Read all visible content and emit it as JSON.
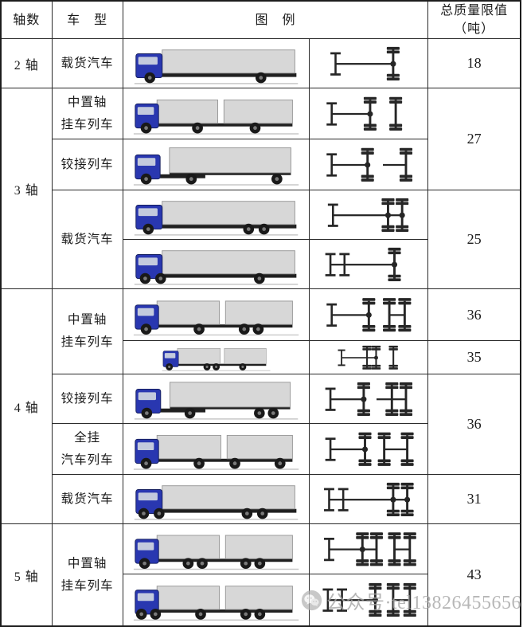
{
  "header": {
    "axles": "轴数",
    "type": "车　型",
    "legend": "图　例",
    "limit": [
      "总质量限值",
      "（吨）"
    ]
  },
  "groups": [
    {
      "label": "2 轴"
    },
    {
      "label": "3 轴"
    },
    {
      "label": "4 轴"
    },
    {
      "label": "5 轴"
    }
  ],
  "rows": [
    {
      "type_label": [
        "载货汽车"
      ],
      "weight": "18",
      "vehicle": {
        "cab": [
          6,
          34
        ],
        "boxes": [
          [
            40,
            172
          ]
        ],
        "bars": [
          [
            38,
            214,
            40,
            5
          ]
        ],
        "wheels": [
          24,
          168
        ]
      },
      "diagram": {
        "lines": [
          [
            28,
            118
          ]
        ],
        "axles": [
          [
            28,
            "s"
          ],
          [
            118,
            "d",
            1
          ]
        ]
      }
    },
    {
      "type_label": [
        "中置轴",
        "挂车列车"
      ],
      "weight": "27",
      "vehicle": {
        "cab": [
          6,
          30
        ],
        "boxes": [
          [
            34,
            78
          ],
          [
            120,
            88
          ]
        ],
        "bars": [
          [
            34,
            208,
            40,
            4
          ]
        ],
        "wheels": [
          20,
          86,
          160
        ]
      },
      "diagram": {
        "lines": [
          [
            22,
            82
          ]
        ],
        "axles": [
          [
            22,
            "s"
          ],
          [
            82,
            "d",
            1
          ],
          [
            122,
            "d"
          ]
        ]
      }
    },
    {
      "type_label": [
        "铰接列车"
      ],
      "vehicle": {
        "cab": [
          6,
          32
        ],
        "boxes": [
          [
            50,
            156,
            6,
            32
          ]
        ],
        "bars": [
          [
            6,
            96,
            40,
            5
          ],
          [
            50,
            206,
            38,
            3
          ]
        ],
        "wheels": [
          20,
          78,
          188
        ]
      },
      "diagram": {
        "lines": [
          [
            22,
            78
          ],
          [
            102,
            138
          ]
        ],
        "axles": [
          [
            22,
            "s"
          ],
          [
            78,
            "d",
            1
          ],
          [
            138,
            "d"
          ]
        ]
      }
    },
    {
      "type_label": [
        "载货汽车"
      ],
      "weight": "25",
      "vehicle": {
        "cab": [
          6,
          34
        ],
        "boxes": [
          [
            40,
            172
          ]
        ],
        "bars": [
          [
            38,
            214,
            40,
            5
          ]
        ],
        "wheels": [
          22,
          152,
          172
        ]
      },
      "diagram": {
        "lines": [
          [
            24,
            132
          ]
        ],
        "axles": [
          [
            24,
            "s"
          ],
          [
            110,
            "d",
            1
          ],
          [
            132,
            "d",
            1
          ]
        ]
      }
    },
    {
      "vehicle": {
        "cab": [
          6,
          34
        ],
        "boxes": [
          [
            40,
            172
          ]
        ],
        "bars": [
          [
            38,
            214,
            40,
            5
          ]
        ],
        "wheels": [
          18,
          38,
          166
        ]
      },
      "diagram": {
        "lines": [
          [
            20,
            120
          ]
        ],
        "axles": [
          [
            20,
            "s"
          ],
          [
            42,
            "s"
          ],
          [
            120,
            "d",
            1
          ]
        ]
      }
    },
    {
      "type_label": [
        "中置轴",
        "挂车列车"
      ],
      "weight": "36",
      "vehicle": {
        "cab": [
          6,
          30
        ],
        "boxes": [
          [
            34,
            80
          ],
          [
            122,
            86
          ]
        ],
        "bars": [
          [
            34,
            208,
            40,
            4
          ]
        ],
        "wheels": [
          20,
          88,
          146,
          164
        ]
      },
      "diagram": {
        "lines": [
          [
            22,
            80
          ],
          [
            112,
            136
          ]
        ],
        "axles": [
          [
            22,
            "s"
          ],
          [
            80,
            "d",
            1
          ],
          [
            112,
            "d"
          ],
          [
            136,
            "d"
          ]
        ]
      }
    },
    {
      "weight": "35",
      "vehicle": {
        "cab": [
          6,
          30
        ],
        "boxes": [
          [
            34,
            84
          ],
          [
            126,
            82
          ]
        ],
        "bars": [
          [
            34,
            208,
            40,
            4
          ]
        ],
        "wheels": [
          18,
          92,
          110,
          162
        ]
      },
      "diagram": {
        "lines": [
          [
            20,
            96
          ]
        ],
        "axles": [
          [
            20,
            "s"
          ],
          [
            76,
            "d"
          ],
          [
            96,
            "d",
            1
          ],
          [
            134,
            "d"
          ]
        ]
      }
    },
    {
      "type_label": [
        "铰接列车"
      ],
      "weight": "36",
      "vehicle": {
        "cab": [
          6,
          32
        ],
        "boxes": [
          [
            50,
            156,
            6,
            32
          ]
        ],
        "bars": [
          [
            6,
            96,
            40,
            5
          ],
          [
            50,
            206,
            38,
            3
          ]
        ],
        "wheels": [
          20,
          76,
          166,
          184
        ]
      },
      "diagram": {
        "lines": [
          [
            20,
            72
          ],
          [
            92,
            138
          ]
        ],
        "axles": [
          [
            20,
            "s"
          ],
          [
            72,
            "d",
            1
          ],
          [
            116,
            "d"
          ],
          [
            138,
            "d"
          ]
        ]
      }
    },
    {
      "type_label": [
        "全挂",
        "汽车列车"
      ],
      "vehicle": {
        "cab": [
          6,
          30
        ],
        "boxes": [
          [
            34,
            82
          ],
          [
            124,
            84
          ]
        ],
        "bars": [
          [
            34,
            208,
            40,
            4
          ]
        ],
        "wheels": [
          20,
          88,
          134,
          192
        ]
      },
      "diagram": {
        "lines": [
          [
            20,
            74
          ],
          [
            104,
            140
          ]
        ],
        "axles": [
          [
            20,
            "s"
          ],
          [
            74,
            "d",
            1
          ],
          [
            104,
            "d"
          ],
          [
            140,
            "d"
          ]
        ]
      }
    },
    {
      "type_label": [
        "载货汽车"
      ],
      "weight": "31",
      "vehicle": {
        "cab": [
          6,
          34
        ],
        "boxes": [
          [
            40,
            172
          ]
        ],
        "bars": [
          [
            38,
            214,
            40,
            5
          ]
        ],
        "wheels": [
          16,
          36,
          150,
          170
        ]
      },
      "diagram": {
        "lines": [
          [
            18,
            140
          ]
        ],
        "axles": [
          [
            18,
            "s"
          ],
          [
            40,
            "s"
          ],
          [
            118,
            "d",
            1
          ],
          [
            140,
            "d",
            1
          ]
        ]
      }
    },
    {
      "type_label": [
        "中置轴",
        "挂车列车"
      ],
      "weight": "43",
      "vehicle": {
        "cab": [
          6,
          30
        ],
        "boxes": [
          [
            34,
            80
          ],
          [
            122,
            86
          ]
        ],
        "bars": [
          [
            34,
            208,
            40,
            4
          ]
        ],
        "wheels": [
          18,
          74,
          92,
          148,
          166
        ]
      },
      "diagram": {
        "lines": [
          [
            18,
            92
          ],
          [
            120,
            144
          ]
        ],
        "axles": [
          [
            18,
            "s"
          ],
          [
            70,
            "d",
            1
          ],
          [
            92,
            "d"
          ],
          [
            120,
            "d"
          ],
          [
            144,
            "d"
          ]
        ]
      }
    },
    {
      "vehicle": {
        "cab": [
          6,
          30
        ],
        "boxes": [
          [
            34,
            80
          ],
          [
            122,
            86
          ]
        ],
        "bars": [
          [
            34,
            208,
            40,
            4
          ]
        ],
        "wheels": [
          14,
          32,
          90,
          148,
          166
        ]
      },
      "diagram": {
        "lines": [
          [
            16,
            90
          ],
          [
            118,
            144
          ]
        ],
        "axles": [
          [
            16,
            "s"
          ],
          [
            38,
            "s"
          ],
          [
            90,
            "d",
            1
          ],
          [
            118,
            "d"
          ],
          [
            144,
            "d"
          ]
        ]
      }
    }
  ],
  "watermark": {
    "text": "公众号·tel13826455656"
  },
  "colors": {
    "cab_blue": "#2937b0",
    "box_gray": "#d7d7d7",
    "ink": "#262626",
    "watermark_gray": "#a6a6a6"
  }
}
